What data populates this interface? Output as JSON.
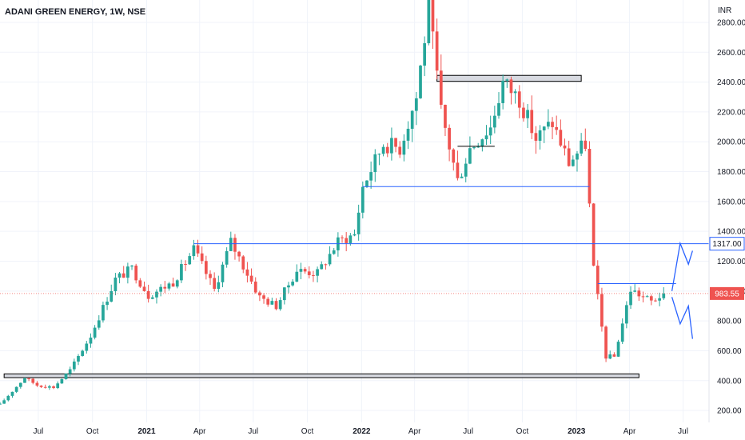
{
  "header": {
    "title": "ADANI GREEN ENERGY, 1W, NSE",
    "currency": "INR"
  },
  "colors": {
    "up": "#26a69a",
    "down": "#ef5350",
    "level_line": "#2962ff",
    "grid": "#f0f3fa",
    "axis_text": "#131722",
    "zone_fill": "#d1d4dc",
    "zone_border": "#000000"
  },
  "chart_data": {
    "type": "candlestick",
    "title": "ADANI GREEN ENERGY, 1W, NSE",
    "ylabel": "INR",
    "ylim": [
      120,
      2950
    ],
    "y_ticks": [
      200,
      400,
      600,
      800,
      1000,
      1200,
      1400,
      1600,
      1800,
      2000,
      2200,
      2400,
      2600,
      2800
    ],
    "y_tick_labels": [
      "200.00",
      "400.00",
      "600.00",
      "800.00",
      "1000.00",
      "1200.00",
      "1400.00",
      "1600.00",
      "1800.00",
      "2000.00",
      "2200.00",
      "2400.00",
      "2600.00",
      "2800.00"
    ],
    "x_ticks": [
      {
        "label": "Jul",
        "date": "2020-07-01",
        "bold": false
      },
      {
        "label": "Oct",
        "date": "2020-10-01",
        "bold": false
      },
      {
        "label": "2021",
        "date": "2021-01-01",
        "bold": true
      },
      {
        "label": "Apr",
        "date": "2021-04-01",
        "bold": false
      },
      {
        "label": "Jul",
        "date": "2021-07-01",
        "bold": false
      },
      {
        "label": "Oct",
        "date": "2021-10-01",
        "bold": false
      },
      {
        "label": "2022",
        "date": "2022-01-01",
        "bold": true
      },
      {
        "label": "Apr",
        "date": "2022-04-01",
        "bold": false
      },
      {
        "label": "Jul",
        "date": "2022-07-01",
        "bold": false
      },
      {
        "label": "Oct",
        "date": "2022-10-01",
        "bold": false
      },
      {
        "label": "2023",
        "date": "2023-01-01",
        "bold": true
      },
      {
        "label": "Apr",
        "date": "2023-04-01",
        "bold": false
      },
      {
        "label": "Jul",
        "date": "2023-07-01",
        "bold": false
      }
    ],
    "x_range": [
      "2020-04-27",
      "2023-08-14"
    ],
    "price_labels": [
      {
        "value": 1317,
        "text": "1317.00",
        "style": "level"
      },
      {
        "value": 983.55,
        "text": "983.55",
        "style": "last"
      }
    ],
    "anchors": [
      {
        "date": "2020-04-27",
        "price": 240
      },
      {
        "date": "2020-06-08",
        "price": 420
      },
      {
        "date": "2020-06-29",
        "price": 370
      },
      {
        "date": "2020-07-27",
        "price": 355
      },
      {
        "date": "2020-08-24",
        "price": 470
      },
      {
        "date": "2020-09-28",
        "price": 700
      },
      {
        "date": "2020-11-09",
        "price": 1080
      },
      {
        "date": "2020-12-07",
        "price": 1150
      },
      {
        "date": "2021-01-04",
        "price": 970
      },
      {
        "date": "2021-02-15",
        "price": 1060
      },
      {
        "date": "2021-03-22",
        "price": 1280
      },
      {
        "date": "2021-04-26",
        "price": 1010
      },
      {
        "date": "2021-05-24",
        "price": 1330
      },
      {
        "date": "2021-07-12",
        "price": 960
      },
      {
        "date": "2021-08-09",
        "price": 900
      },
      {
        "date": "2021-09-13",
        "price": 1140
      },
      {
        "date": "2021-10-18",
        "price": 1120
      },
      {
        "date": "2021-11-22",
        "price": 1330
      },
      {
        "date": "2021-12-20",
        "price": 1380
      },
      {
        "date": "2022-01-03",
        "price": 1700
      },
      {
        "date": "2022-02-07",
        "price": 1990
      },
      {
        "date": "2022-03-07",
        "price": 1960
      },
      {
        "date": "2022-04-04",
        "price": 2300
      },
      {
        "date": "2022-04-25",
        "price": 2900
      },
      {
        "date": "2022-05-16",
        "price": 2200
      },
      {
        "date": "2022-06-13",
        "price": 1740
      },
      {
        "date": "2022-07-04",
        "price": 1960
      },
      {
        "date": "2022-08-08",
        "price": 2100
      },
      {
        "date": "2022-08-29",
        "price": 2400
      },
      {
        "date": "2022-09-26",
        "price": 2290
      },
      {
        "date": "2022-10-24",
        "price": 2020
      },
      {
        "date": "2022-11-21",
        "price": 2130
      },
      {
        "date": "2022-12-19",
        "price": 1860
      },
      {
        "date": "2023-01-16",
        "price": 1990
      },
      {
        "date": "2023-01-30",
        "price": 1150
      },
      {
        "date": "2023-02-20",
        "price": 560
      },
      {
        "date": "2023-03-06",
        "price": 560
      },
      {
        "date": "2023-04-03",
        "price": 1010
      },
      {
        "date": "2023-05-08",
        "price": 930
      },
      {
        "date": "2023-05-29",
        "price": 983.55
      }
    ],
    "annotations": [
      {
        "type": "hline",
        "price": 1317,
        "from": "2021-03-22",
        "to": "2023-08-14",
        "color": "#2962ff"
      },
      {
        "type": "hline",
        "price": 1700,
        "from": "2022-01-03",
        "to": "2023-01-23",
        "color": "#2962ff"
      },
      {
        "type": "hline",
        "price": 1050,
        "from": "2023-02-06",
        "to": "2023-06-19",
        "color": "#2962ff"
      },
      {
        "type": "hline",
        "price": 1970,
        "from": "2022-06-13",
        "to": "2022-08-15",
        "color": "#000000"
      },
      {
        "type": "zone",
        "price_top": 2445,
        "price_bottom": 2405,
        "from": "2022-05-09",
        "to": "2023-01-09"
      },
      {
        "type": "zone",
        "price_top": 445,
        "price_bottom": 420,
        "from": "2020-05-04",
        "to": "2023-04-17"
      },
      {
        "type": "path",
        "color": "#2962ff",
        "points": [
          [
            "2023-06-12",
            1000
          ],
          [
            "2023-06-26",
            1320
          ],
          [
            "2023-07-10",
            1180
          ],
          [
            "2023-07-17",
            1270
          ]
        ]
      },
      {
        "type": "path",
        "color": "#2962ff",
        "points": [
          [
            "2023-06-12",
            960
          ],
          [
            "2023-06-26",
            780
          ],
          [
            "2023-07-10",
            900
          ],
          [
            "2023-07-17",
            680
          ]
        ]
      }
    ]
  }
}
